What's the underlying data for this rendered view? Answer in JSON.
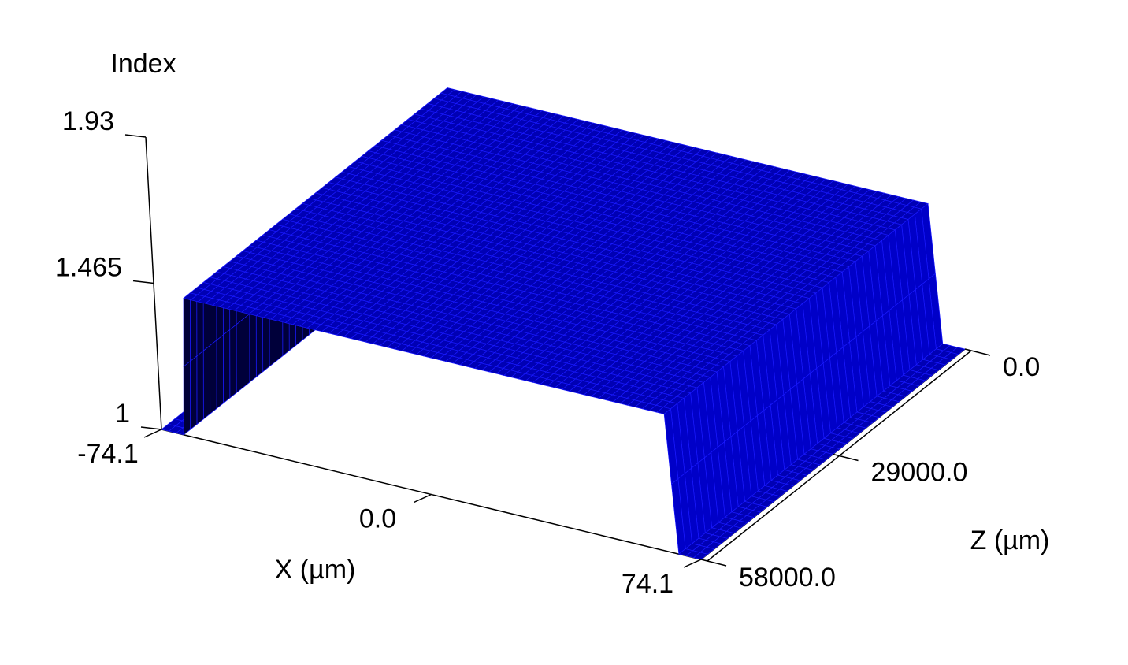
{
  "chart_data": {
    "type": "surface",
    "x_label": "X (µm)",
    "y_label": "Index",
    "z_label": "Z (µm)",
    "x": [
      -74.1,
      -68,
      -66,
      66,
      68,
      74.1
    ],
    "z": [
      0,
      29000,
      58000
    ],
    "values": [
      [
        1,
        1,
        1.44,
        1.44,
        1,
        1
      ],
      [
        1,
        1,
        1.44,
        1.44,
        1,
        1
      ],
      [
        1,
        1,
        1.44,
        1.44,
        1,
        1
      ]
    ],
    "color": "#0000b4",
    "xlim": [
      -74.1,
      74.1
    ],
    "zlim": [
      0,
      58000
    ],
    "ylim": [
      1,
      1.93
    ],
    "xticks": [
      {
        "value": -74.1,
        "label": "-74.1"
      },
      {
        "value": 0,
        "label": "0.0"
      },
      {
        "value": 74.1,
        "label": "74.1"
      }
    ],
    "zticks": [
      {
        "value": 0,
        "label": "0.0"
      },
      {
        "value": 29000,
        "label": "29000.0"
      },
      {
        "value": 58000,
        "label": "58000.0"
      }
    ],
    "yticks": [
      1.93,
      1.465,
      1
    ]
  }
}
